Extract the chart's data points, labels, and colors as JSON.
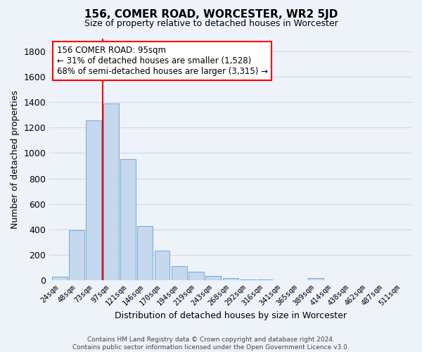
{
  "title": "156, COMER ROAD, WORCESTER, WR2 5JD",
  "subtitle": "Size of property relative to detached houses in Worcester",
  "xlabel": "Distribution of detached houses by size in Worcester",
  "ylabel": "Number of detached properties",
  "bar_labels": [
    "24sqm",
    "48sqm",
    "73sqm",
    "97sqm",
    "121sqm",
    "146sqm",
    "170sqm",
    "194sqm",
    "219sqm",
    "243sqm",
    "268sqm",
    "292sqm",
    "316sqm",
    "341sqm",
    "365sqm",
    "389sqm",
    "414sqm",
    "438sqm",
    "462sqm",
    "487sqm",
    "511sqm"
  ],
  "bar_values": [
    25,
    395,
    1260,
    1390,
    950,
    425,
    230,
    110,
    65,
    35,
    15,
    5,
    3,
    0,
    0,
    18,
    0,
    0,
    0,
    0,
    0
  ],
  "bar_color": "#c5d8ee",
  "bar_edge_color": "#6baed6",
  "vline_color": "red",
  "vline_x": 2.5,
  "ylim": [
    0,
    1900
  ],
  "yticks": [
    0,
    200,
    400,
    600,
    800,
    1000,
    1200,
    1400,
    1600,
    1800
  ],
  "annotation_text": "156 COMER ROAD: 95sqm\n← 31% of detached houses are smaller (1,528)\n68% of semi-detached houses are larger (3,315) →",
  "annotation_box_color": "white",
  "annotation_box_edge": "red",
  "footer_line1": "Contains HM Land Registry data © Crown copyright and database right 2024.",
  "footer_line2": "Contains public sector information licensed under the Open Government Licence v3.0.",
  "background_color": "#eef2f9",
  "grid_color": "#d0d8e8"
}
